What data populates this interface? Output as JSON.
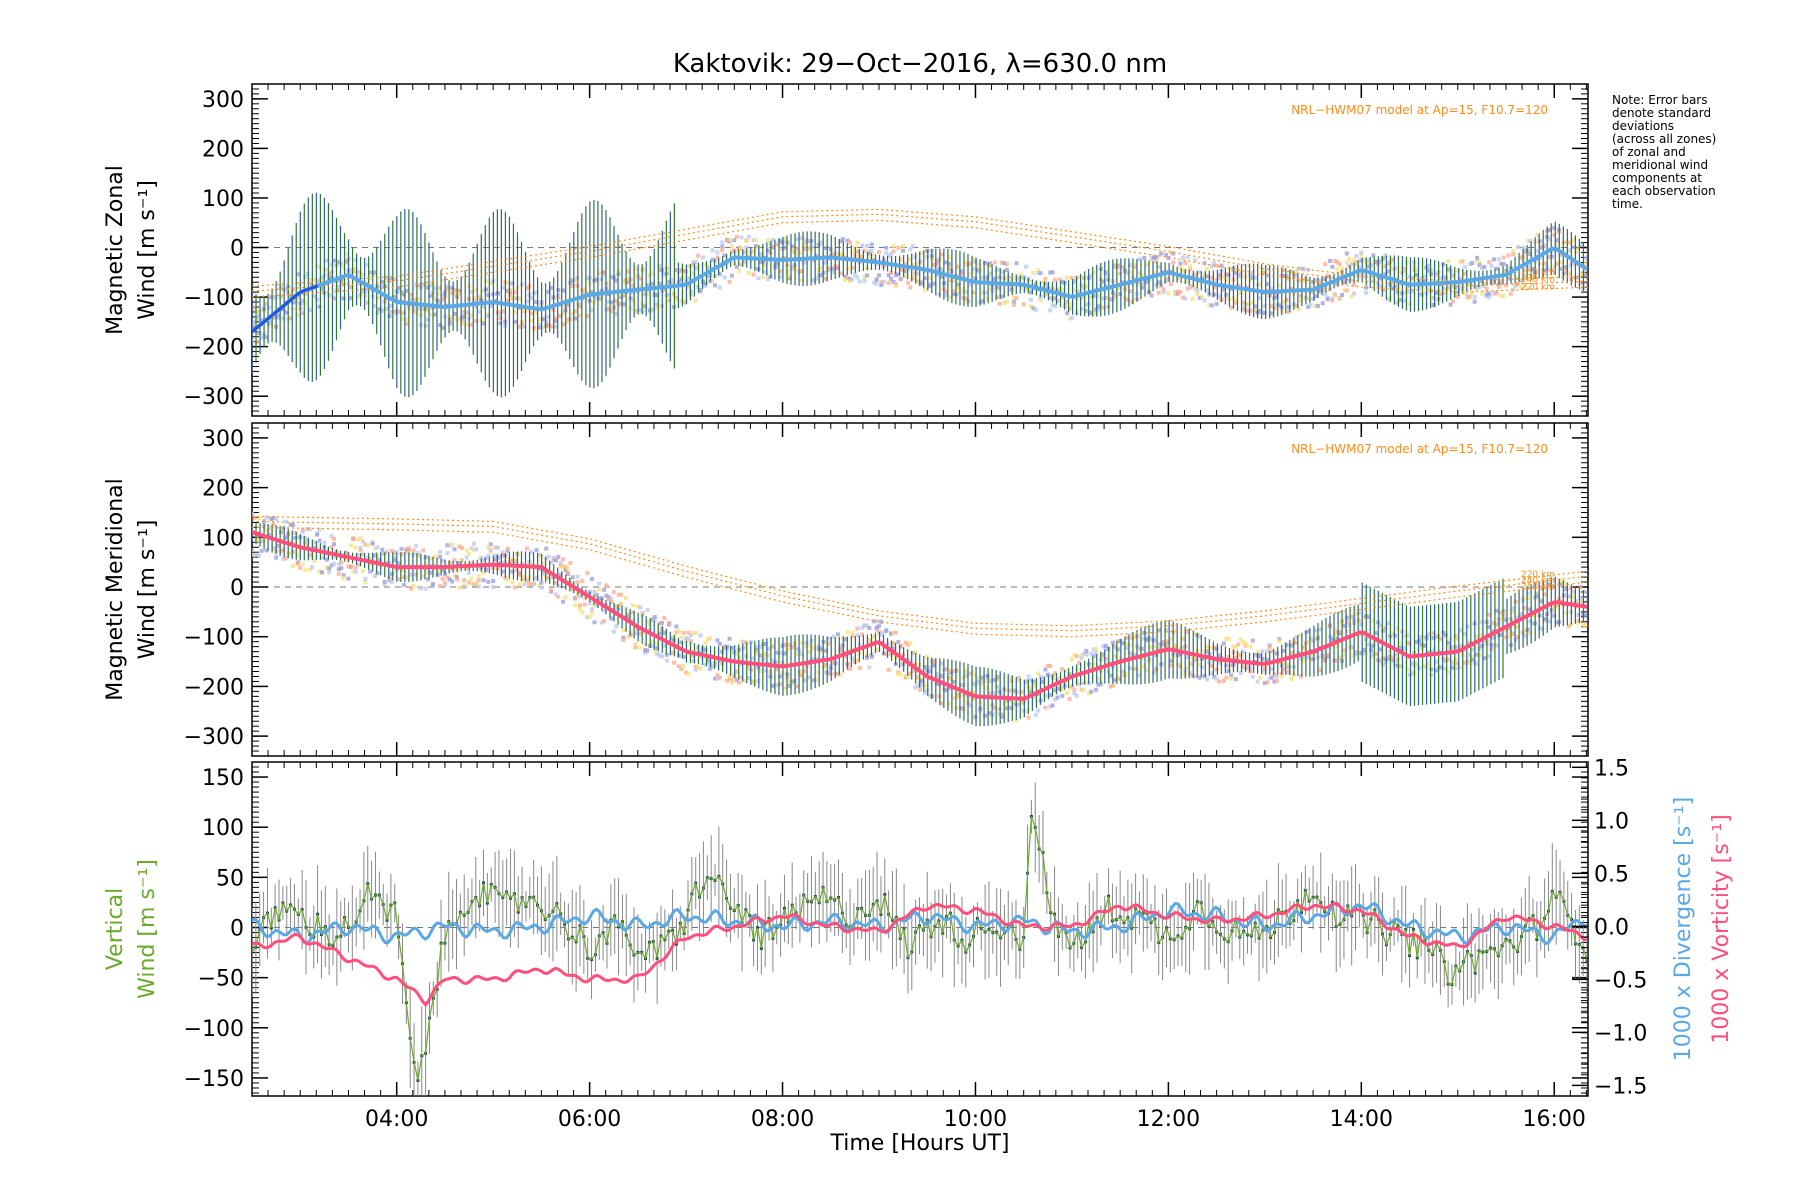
{
  "chart_data": {
    "type": "line",
    "title": "Kaktovik: 29−Oct−2016, λ=630.0 nm",
    "xlabel": "Time [Hours UT]",
    "x_ticks": [
      "04:00",
      "06:00",
      "08:00",
      "10:00",
      "12:00",
      "14:00",
      "16:00"
    ],
    "x_tick_hours": [
      4,
      6,
      8,
      10,
      12,
      14,
      16
    ],
    "xlim_hours": [
      2.5,
      16.35
    ],
    "note": [
      "Note: Error bars",
      "denote standard",
      "deviations",
      "(across all zones)",
      "of zonal and",
      "meridional wind",
      "components at",
      "each observation",
      "time."
    ],
    "colors": {
      "zonal_mean": "#5aa9e6",
      "zonal_mean_dark": "#2255dd",
      "meridional_mean": "#ff4f7a",
      "vertical": "#6aaa2a",
      "divergence": "#5aa9e6",
      "vorticity": "#ff4f7a",
      "model": "#ff8c1a",
      "error_bar_green": "#2d7a2d",
      "error_bar_blue": "#2f5fa8",
      "zone_purple": "#9a9ad8",
      "zone_salmon": "#ffa98a",
      "zone_yellow": "#f5e07a"
    },
    "panels": [
      {
        "name": "zonal",
        "ylabel_line1": "Magnetic Zonal",
        "ylabel_line2": "Wind [m s⁻¹]",
        "ylim": [
          -340,
          330
        ],
        "y_ticks": [
          "300",
          "200",
          "100",
          "0",
          "−100",
          "−200",
          "−300"
        ],
        "y_tick_values": [
          300,
          200,
          100,
          0,
          -100,
          -200,
          -300
        ],
        "model_label": "NRL−HWM07 model at Ap=15, F10.7=120",
        "altitude_labels": [
          "250 km",
          "240 km",
          "220 km"
        ],
        "series": [
          {
            "role": "mean",
            "x": [
              2.5,
              3.0,
              3.5,
              4.0,
              4.5,
              5.0,
              5.5,
              6.0,
              6.5,
              7.0,
              7.5,
              8.0,
              8.5,
              9.0,
              9.5,
              10.0,
              10.5,
              11.0,
              11.5,
              12.0,
              12.5,
              13.0,
              13.5,
              14.0,
              14.5,
              15.0,
              15.5,
              16.0,
              16.35
            ],
            "y": [
              -170,
              -90,
              -55,
              -110,
              -120,
              -110,
              -125,
              -95,
              -85,
              -75,
              -20,
              -25,
              -20,
              -30,
              -45,
              -70,
              -75,
              -100,
              -75,
              -50,
              -75,
              -90,
              -85,
              -45,
              -75,
              -70,
              -55,
              0,
              -45
            ]
          },
          {
            "role": "model",
            "x": [
              2.5,
              4.0,
              6.0,
              8.0,
              9.0,
              10.0,
              11.0,
              12.0,
              13.0,
              14.0,
              15.0,
              16.35
            ],
            "y": [
              -100,
              -80,
              -20,
              50,
              55,
              40,
              10,
              -20,
              -55,
              -80,
              -90,
              -80
            ]
          }
        ]
      },
      {
        "name": "meridional",
        "ylabel_line1": "Magnetic Meridional",
        "ylabel_line2": "Wind [m s⁻¹]",
        "ylim": [
          -340,
          330
        ],
        "y_ticks": [
          "300",
          "200",
          "100",
          "0",
          "−100",
          "−200",
          "−300"
        ],
        "y_tick_values": [
          300,
          200,
          100,
          0,
          -100,
          -200,
          -300
        ],
        "model_label": "NRL−HWM07 model at Ap=15, F10.7=120",
        "altitude_labels": [
          "220 km",
          "240 km",
          "250 km"
        ],
        "series": [
          {
            "role": "mean",
            "x": [
              2.5,
              3.0,
              3.5,
              4.0,
              4.5,
              5.0,
              5.5,
              6.0,
              6.5,
              7.0,
              7.5,
              8.0,
              8.5,
              9.0,
              9.5,
              10.0,
              10.5,
              11.0,
              11.5,
              12.0,
              12.5,
              13.0,
              13.5,
              14.0,
              14.5,
              15.0,
              15.5,
              16.0,
              16.35
            ],
            "y": [
              110,
              80,
              60,
              40,
              40,
              45,
              40,
              -20,
              -80,
              -130,
              -150,
              -160,
              -145,
              -110,
              -180,
              -220,
              -225,
              -180,
              -150,
              -125,
              -145,
              -155,
              -130,
              -90,
              -140,
              -130,
              -80,
              -30,
              -40
            ]
          },
          {
            "role": "model",
            "x": [
              2.5,
              4.0,
              5.0,
              6.0,
              7.0,
              8.0,
              9.0,
              10.0,
              11.0,
              12.0,
              13.0,
              14.0,
              15.0,
              16.35
            ],
            "y": [
              120,
              115,
              110,
              75,
              20,
              -30,
              -70,
              -95,
              -100,
              -90,
              -70,
              -45,
              -20,
              10
            ]
          }
        ]
      },
      {
        "name": "vertical",
        "ylabel_line1": "Vertical",
        "ylabel_line2": "Wind [m s⁻¹]",
        "ylim": [
          -168,
          165
        ],
        "y_ticks": [
          "150",
          "100",
          "50",
          "0",
          "−50",
          "−100",
          "−150"
        ],
        "y_tick_values": [
          150,
          100,
          50,
          0,
          -50,
          -100,
          -150
        ],
        "right_ylabel_divergence": "1000 x Divergence [s⁻¹]",
        "right_ylabel_vorticity": "1000 x Vorticity [s⁻¹]",
        "right_ylim": [
          -1.6,
          1.55
        ],
        "right_ticks": [
          "1.5",
          "1.0",
          "0.5",
          "0.0",
          "−0.5",
          "−1.0",
          "−1.5"
        ],
        "right_tick_values": [
          1.5,
          1.0,
          0.5,
          0.0,
          -0.5,
          -1.0,
          -1.5
        ],
        "series": [
          {
            "name": "vertical",
            "x": [
              2.5,
              2.8,
              3.1,
              3.4,
              3.7,
              4.0,
              4.2,
              4.5,
              4.8,
              5.1,
              5.4,
              5.7,
              6.0,
              6.3,
              6.6,
              6.9,
              7.2,
              7.5,
              7.8,
              8.1,
              8.4,
              8.7,
              9.0,
              9.3,
              9.6,
              9.9,
              10.2,
              10.5,
              10.6,
              10.8,
              11.1,
              11.4,
              11.7,
              12.0,
              12.3,
              12.6,
              12.9,
              13.2,
              13.5,
              13.8,
              14.1,
              14.4,
              14.7,
              14.9,
              15.2,
              15.5,
              15.8,
              16.0,
              16.35
            ],
            "y": [
              -20,
              20,
              5,
              -10,
              30,
              10,
              -165,
              -10,
              40,
              20,
              30,
              10,
              -20,
              0,
              -30,
              -10,
              55,
              20,
              -10,
              10,
              30,
              10,
              30,
              -20,
              10,
              -10,
              5,
              -10,
              125,
              0,
              -15,
              20,
              10,
              -10,
              20,
              0,
              -10,
              10,
              40,
              10,
              5,
              -10,
              -20,
              -45,
              -30,
              -20,
              0,
              30,
              -20
            ]
          },
          {
            "name": "divergence",
            "x": [
              2.5,
              3.0,
              3.5,
              4.0,
              4.5,
              5.0,
              5.5,
              6.0,
              6.5,
              7.0,
              7.5,
              8.0,
              8.5,
              9.0,
              9.5,
              10.0,
              10.5,
              11.0,
              11.5,
              12.0,
              12.5,
              13.0,
              13.5,
              14.0,
              14.5,
              15.0,
              15.5,
              16.0,
              16.35
            ],
            "y": [
              0.0,
              -0.1,
              0.0,
              -0.1,
              0.0,
              -0.05,
              0.0,
              0.1,
              0.0,
              0.1,
              0.05,
              0.0,
              0.05,
              0.0,
              0.1,
              0.0,
              0.05,
              -0.05,
              0.0,
              0.15,
              0.1,
              0.0,
              0.1,
              0.2,
              0.0,
              -0.1,
              0.0,
              -0.1,
              0.1
            ]
          },
          {
            "name": "vorticity",
            "x": [
              2.5,
              3.0,
              3.5,
              4.0,
              4.3,
              4.5,
              5.0,
              5.5,
              6.0,
              6.5,
              7.0,
              7.5,
              8.0,
              8.5,
              9.0,
              9.5,
              10.0,
              10.5,
              11.0,
              11.5,
              12.0,
              12.5,
              13.0,
              13.5,
              14.0,
              14.5,
              15.0,
              15.5,
              16.0,
              16.35
            ],
            "y": [
              -0.2,
              -0.1,
              -0.3,
              -0.5,
              -0.7,
              -0.5,
              -0.5,
              -0.4,
              -0.5,
              -0.5,
              -0.1,
              0.0,
              0.1,
              0.0,
              -0.05,
              0.2,
              0.15,
              0.0,
              0.0,
              0.2,
              0.1,
              0.05,
              0.1,
              0.2,
              0.15,
              -0.1,
              -0.2,
              0.1,
              0.0,
              -0.1
            ]
          }
        ]
      }
    ]
  }
}
